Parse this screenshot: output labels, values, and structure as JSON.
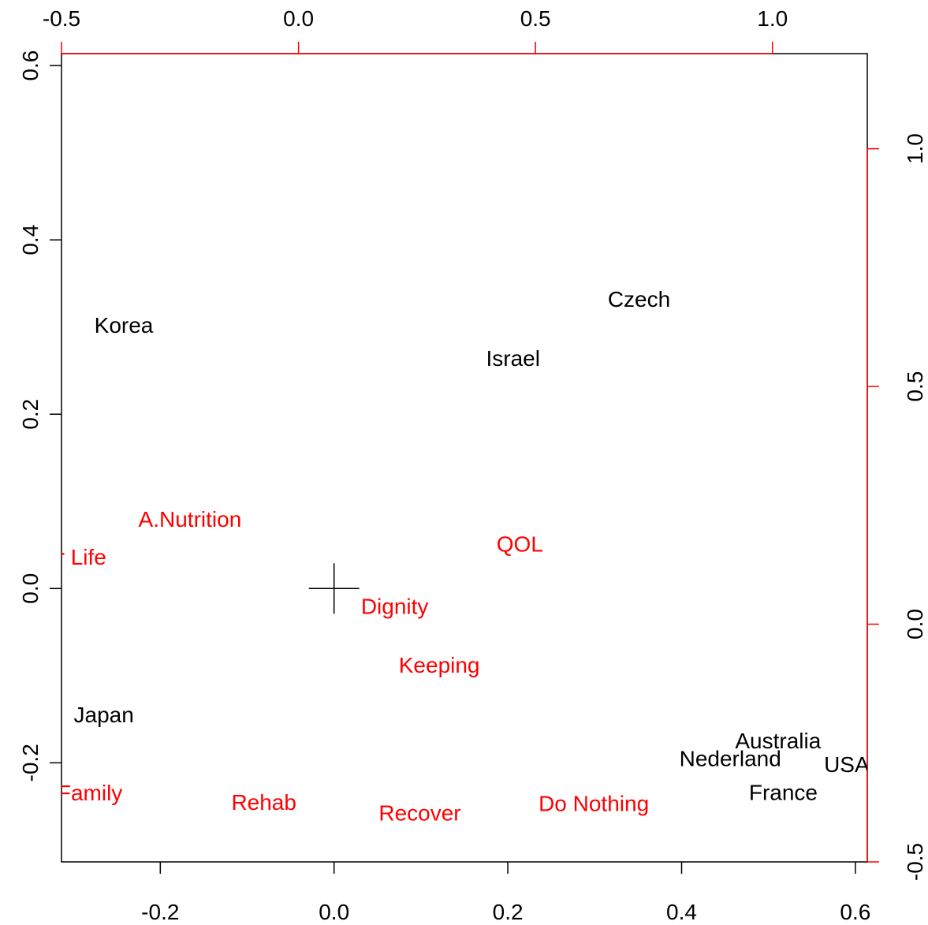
{
  "chart_data": {
    "type": "scatter",
    "subtype": "biplot",
    "title": "",
    "axes": {
      "bottom": {
        "range": [
          -0.3137,
          0.6137
        ],
        "ticks": [
          "-0.2",
          "0.0",
          "0.2",
          "0.4",
          "0.6"
        ],
        "tick_values": [
          -0.2,
          0.0,
          0.2,
          0.4,
          0.6
        ],
        "color": "#000000"
      },
      "left": {
        "range": [
          -0.3137,
          0.6137
        ],
        "ticks": [
          "-0.2",
          "0.0",
          "0.2",
          "0.4",
          "0.6"
        ],
        "tick_values": [
          -0.2,
          0.0,
          0.2,
          0.4,
          0.6
        ],
        "color": "#000000"
      },
      "top": {
        "range": [
          -0.5,
          1.2
        ],
        "ticks": [
          "-0.5",
          "0.0",
          "0.5",
          "1.0"
        ],
        "tick_values": [
          -0.5,
          0.0,
          0.5,
          1.0
        ],
        "color": "#ff0000"
      },
      "right": {
        "range": [
          -0.5,
          1.2
        ],
        "ticks": [
          "-0.5",
          "0.0",
          "0.5",
          "1.0"
        ],
        "tick_values": [
          -0.5,
          0.0,
          0.5,
          1.0
        ],
        "color": "#ff0000"
      }
    },
    "origin_marker": {
      "x": 0,
      "y": 0
    },
    "series": [
      {
        "color": "#000000",
        "scale": "bottom-left",
        "points": [
          {
            "label": "Korea",
            "x": -0.242,
            "y": 0.302
          },
          {
            "label": "Czech",
            "x": 0.351,
            "y": 0.332
          },
          {
            "label": "Israel",
            "x": 0.206,
            "y": 0.264
          },
          {
            "label": "Japan",
            "x": -0.265,
            "y": -0.145
          },
          {
            "label": "Australia",
            "x": 0.511,
            "y": -0.175
          },
          {
            "label": "Nederland",
            "x": 0.456,
            "y": -0.195
          },
          {
            "label": "USA",
            "x": 0.59,
            "y": -0.202
          },
          {
            "label": "France",
            "x": 0.517,
            "y": -0.234
          }
        ]
      },
      {
        "color": "#ff0000",
        "scale": "top-right",
        "points": [
          {
            "label": "A.Nutrition",
            "x": -0.229,
            "y": 0.221
          },
          {
            "label": "Longer Life",
            "x": -0.522,
            "y": 0.141
          },
          {
            "label": "QOL",
            "x": 0.467,
            "y": 0.168
          },
          {
            "label": "Dignity",
            "x": 0.203,
            "y": 0.037
          },
          {
            "label": "Keeping",
            "x": 0.297,
            "y": -0.086
          },
          {
            "label": "Family",
            "x": -0.44,
            "y": -0.355
          },
          {
            "label": "Rehab",
            "x": -0.073,
            "y": -0.375
          },
          {
            "label": "Recover",
            "x": 0.256,
            "y": -0.397
          },
          {
            "label": "Do Nothing",
            "x": 0.623,
            "y": -0.377
          }
        ]
      }
    ]
  }
}
